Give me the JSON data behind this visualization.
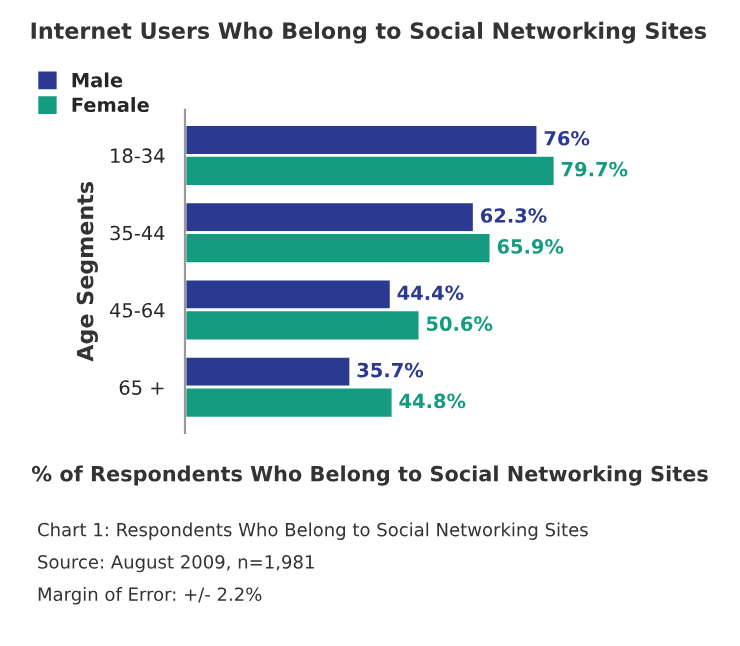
{
  "chart_data": {
    "type": "bar",
    "orientation": "horizontal",
    "title": "Internet Users Who Belong to Social Networking Sites",
    "categories": [
      "18-34",
      "35-44",
      "45-64",
      "65 +"
    ],
    "series": [
      {
        "name": "Male",
        "color": "#2b3990",
        "values": [
          76,
          62.3,
          44.4,
          35.7
        ],
        "value_labels": [
          "76%",
          "62.3%",
          "44.4%",
          "35.7%"
        ]
      },
      {
        "name": "Female",
        "color": "#149b80",
        "values": [
          79.7,
          65.9,
          50.6,
          44.8
        ],
        "value_labels": [
          "79.7%",
          "65.9%",
          "50.6%",
          "44.8%"
        ]
      }
    ],
    "ylabel": "Age Segments",
    "xlabel": "% of Respondents Who Belong to Social Networking Sites",
    "legend": "top left",
    "grid": false,
    "tick_labels": "y",
    "annotations": [
      "Chart 1: Respondents Who Belong to Social Networking Sites",
      "Source: August 2009, n=1,981",
      "Margin of Error: +/- 2.2%"
    ]
  }
}
